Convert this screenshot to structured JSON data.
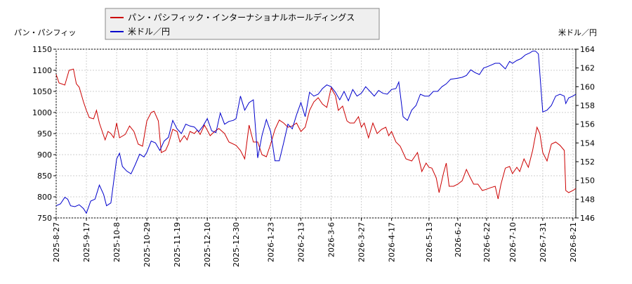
{
  "chart_data": {
    "type": "line",
    "legend_position": "top",
    "grid": true,
    "y_left_label": "パン・パシフィッ",
    "y_right_label": "米ドル／円",
    "y_left_range": [
      750,
      1150
    ],
    "y_right_range": [
      146,
      164
    ],
    "y_left_ticks": [
      "750",
      "800",
      "850",
      "900",
      "950",
      "1000",
      "1050",
      "1100",
      "1150"
    ],
    "y_right_ticks": [
      "146",
      "148",
      "150",
      "152",
      "154",
      "156",
      "158",
      "160",
      "162",
      "164"
    ],
    "x_range": [
      "2025-8-27",
      "2026-8-23"
    ],
    "x_ticks": [
      "2025-8-27",
      "2025-9-17",
      "2025-10-8",
      "2025-10-29",
      "2025-11-19",
      "2025-12-10",
      "2025-12-30",
      "2026-1-23",
      "2026-2-13",
      "2026-3-6",
      "2026-3-27",
      "2026-4-17",
      "2026-5-13",
      "2026-6-2",
      "2026-6-22",
      "2026-7-10",
      "2026-7-31",
      "2026-8-21"
    ],
    "series": [
      {
        "name": "パン・パシフィック・インターナショナルホールディングス",
        "color": "#cc0000",
        "axis": "left",
        "points": [
          [
            "2025-8-27",
            1090
          ],
          [
            "2025-8-29",
            1070
          ],
          [
            "2025-9-2",
            1065
          ],
          [
            "2025-9-5",
            1100
          ],
          [
            "2025-9-8",
            1103
          ],
          [
            "2025-9-10",
            1068
          ],
          [
            "2025-9-12",
            1060
          ],
          [
            "2025-9-15",
            1025
          ],
          [
            "2025-9-17",
            1005
          ],
          [
            "2025-9-19",
            988
          ],
          [
            "2025-9-22",
            985
          ],
          [
            "2025-9-24",
            1005
          ],
          [
            "2025-9-26",
            975
          ],
          [
            "2025-9-30",
            935
          ],
          [
            "2025-10-2",
            955
          ],
          [
            "2025-10-4",
            950
          ],
          [
            "2025-10-6",
            940
          ],
          [
            "2025-10-8",
            975
          ],
          [
            "2025-10-10",
            940
          ],
          [
            "2025-10-14",
            948
          ],
          [
            "2025-10-17",
            968
          ],
          [
            "2025-10-20",
            955
          ],
          [
            "2025-10-23",
            925
          ],
          [
            "2025-10-26",
            920
          ],
          [
            "2025-10-29",
            980
          ],
          [
            "2025-11-1",
            1000
          ],
          [
            "2025-11-3",
            1003
          ],
          [
            "2025-11-6",
            980
          ],
          [
            "2025-11-8",
            905
          ],
          [
            "2025-11-11",
            910
          ],
          [
            "2025-11-13",
            925
          ],
          [
            "2025-11-16",
            960
          ],
          [
            "2025-11-19",
            955
          ],
          [
            "2025-11-21",
            930
          ],
          [
            "2025-11-24",
            945
          ],
          [
            "2025-11-26",
            935
          ],
          [
            "2025-11-28",
            955
          ],
          [
            "2025-12-1",
            950
          ],
          [
            "2025-12-3",
            958
          ],
          [
            "2025-12-5",
            948
          ],
          [
            "2025-12-8",
            970
          ],
          [
            "2025-12-10",
            958
          ],
          [
            "2025-12-12",
            945
          ],
          [
            "2025-12-15",
            955
          ],
          [
            "2025-12-18",
            962
          ],
          [
            "2025-12-22",
            950
          ],
          [
            "2025-12-25",
            930
          ],
          [
            "2025-12-30",
            922
          ],
          [
            "2026-1-2",
            910
          ],
          [
            "2026-1-5",
            890
          ],
          [
            "2026-1-8",
            970
          ],
          [
            "2026-1-11",
            930
          ],
          [
            "2026-1-14",
            930
          ],
          [
            "2026-1-17",
            900
          ],
          [
            "2026-1-20",
            895
          ],
          [
            "2026-1-23",
            925
          ],
          [
            "2026-1-26",
            960
          ],
          [
            "2026-1-29",
            982
          ],
          [
            "2026-2-1",
            975
          ],
          [
            "2026-2-4",
            965
          ],
          [
            "2026-2-7",
            968
          ],
          [
            "2026-2-10",
            975
          ],
          [
            "2026-2-13",
            955
          ],
          [
            "2026-2-16",
            965
          ],
          [
            "2026-2-19",
            1005
          ],
          [
            "2026-2-22",
            1025
          ],
          [
            "2026-2-25",
            1035
          ],
          [
            "2026-2-28",
            1020
          ],
          [
            "2026-3-3",
            1012
          ],
          [
            "2026-3-6",
            1058
          ],
          [
            "2026-3-9",
            1040
          ],
          [
            "2026-3-11",
            1005
          ],
          [
            "2026-3-14",
            1015
          ],
          [
            "2026-3-17",
            980
          ],
          [
            "2026-3-19",
            975
          ],
          [
            "2026-3-22",
            975
          ],
          [
            "2026-3-25",
            990
          ],
          [
            "2026-3-27",
            965
          ],
          [
            "2026-3-29",
            975
          ],
          [
            "2026-4-1",
            940
          ],
          [
            "2026-4-4",
            975
          ],
          [
            "2026-4-7",
            950
          ],
          [
            "2026-4-10",
            960
          ],
          [
            "2026-4-13",
            965
          ],
          [
            "2026-4-15",
            945
          ],
          [
            "2026-4-17",
            955
          ],
          [
            "2026-4-20",
            930
          ],
          [
            "2026-4-23",
            920
          ],
          [
            "2026-4-27",
            890
          ],
          [
            "2026-5-1",
            885
          ],
          [
            "2026-5-5",
            905
          ],
          [
            "2026-5-8",
            860
          ],
          [
            "2026-5-11",
            880
          ],
          [
            "2026-5-13",
            870
          ],
          [
            "2026-5-15",
            868
          ],
          [
            "2026-5-18",
            845
          ],
          [
            "2026-5-20",
            810
          ],
          [
            "2026-5-23",
            855
          ],
          [
            "2026-5-25",
            880
          ],
          [
            "2026-5-27",
            825
          ],
          [
            "2026-5-30",
            825
          ],
          [
            "2026-6-2",
            830
          ],
          [
            "2026-6-5",
            838
          ],
          [
            "2026-6-8",
            865
          ],
          [
            "2026-6-10",
            850
          ],
          [
            "2026-6-13",
            830
          ],
          [
            "2026-6-16",
            830
          ],
          [
            "2026-6-19",
            815
          ],
          [
            "2026-6-22",
            818
          ],
          [
            "2026-6-25",
            822
          ],
          [
            "2026-6-28",
            825
          ],
          [
            "2026-6-30",
            795
          ],
          [
            "2026-7-2",
            830
          ],
          [
            "2026-7-5",
            868
          ],
          [
            "2026-7-8",
            872
          ],
          [
            "2026-7-10",
            855
          ],
          [
            "2026-7-13",
            870
          ],
          [
            "2026-7-15",
            860
          ],
          [
            "2026-7-18",
            890
          ],
          [
            "2026-7-21",
            870
          ],
          [
            "2026-7-24",
            910
          ],
          [
            "2026-7-27",
            965
          ],
          [
            "2026-7-29",
            950
          ],
          [
            "2026-7-31",
            905
          ],
          [
            "2026-8-3",
            885
          ],
          [
            "2026-8-6",
            925
          ],
          [
            "2026-8-9",
            930
          ],
          [
            "2026-8-12",
            922
          ],
          [
            "2026-8-15",
            910
          ],
          [
            "2026-8-16",
            815
          ],
          [
            "2026-8-18",
            810
          ],
          [
            "2026-8-21",
            815
          ],
          [
            "2026-8-23",
            820
          ]
        ]
      },
      {
        "name": "米ドル／円",
        "color": "#0000cc",
        "axis": "right",
        "points": [
          [
            "2025-8-27",
            147.3
          ],
          [
            "2025-8-30",
            147.5
          ],
          [
            "2025-9-2",
            148.2
          ],
          [
            "2025-9-4",
            148.0
          ],
          [
            "2025-9-6",
            147.3
          ],
          [
            "2025-9-9",
            147.2
          ],
          [
            "2025-9-12",
            147.4
          ],
          [
            "2025-9-15",
            147.0
          ],
          [
            "2025-9-17",
            146.5
          ],
          [
            "2025-9-20",
            147.8
          ],
          [
            "2025-9-23",
            148.0
          ],
          [
            "2025-9-26",
            149.5
          ],
          [
            "2025-9-29",
            148.5
          ],
          [
            "2025-10-1",
            147.3
          ],
          [
            "2025-10-4",
            147.6
          ],
          [
            "2025-10-8",
            152.3
          ],
          [
            "2025-10-10",
            152.9
          ],
          [
            "2025-10-12",
            151.5
          ],
          [
            "2025-10-15",
            151.0
          ],
          [
            "2025-10-18",
            150.7
          ],
          [
            "2025-10-21",
            151.7
          ],
          [
            "2025-10-24",
            152.8
          ],
          [
            "2025-10-27",
            152.5
          ],
          [
            "2025-10-29",
            153.0
          ],
          [
            "2025-11-1",
            154.2
          ],
          [
            "2025-11-4",
            154.0
          ],
          [
            "2025-11-7",
            153.2
          ],
          [
            "2025-11-10",
            154.2
          ],
          [
            "2025-11-13",
            154.6
          ],
          [
            "2025-11-16",
            156.4
          ],
          [
            "2025-11-19",
            155.5
          ],
          [
            "2025-11-22",
            155.0
          ],
          [
            "2025-11-25",
            156.0
          ],
          [
            "2025-11-28",
            155.8
          ],
          [
            "2025-12-1",
            155.7
          ],
          [
            "2025-12-4",
            155.2
          ],
          [
            "2025-12-7",
            155.8
          ],
          [
            "2025-12-10",
            156.6
          ],
          [
            "2025-12-13",
            155.3
          ],
          [
            "2025-12-16",
            155.1
          ],
          [
            "2025-12-19",
            157.2
          ],
          [
            "2025-12-22",
            156.0
          ],
          [
            "2025-12-25",
            156.3
          ],
          [
            "2025-12-28",
            156.4
          ],
          [
            "2025-12-30",
            156.6
          ],
          [
            "2026-1-2",
            159.0
          ],
          [
            "2026-1-5",
            157.5
          ],
          [
            "2026-1-8",
            158.3
          ],
          [
            "2026-1-11",
            158.6
          ],
          [
            "2026-1-14",
            152.4
          ],
          [
            "2026-1-17",
            154.8
          ],
          [
            "2026-1-20",
            156.5
          ],
          [
            "2026-1-23",
            155.2
          ],
          [
            "2026-1-26",
            152.1
          ],
          [
            "2026-1-29",
            152.1
          ],
          [
            "2026-2-1",
            154.0
          ],
          [
            "2026-2-4",
            156.0
          ],
          [
            "2026-2-7",
            155.5
          ],
          [
            "2026-2-10",
            157.0
          ],
          [
            "2026-2-13",
            158.3
          ],
          [
            "2026-2-16",
            156.8
          ],
          [
            "2026-2-19",
            159.4
          ],
          [
            "2026-2-22",
            159.0
          ],
          [
            "2026-2-25",
            159.2
          ],
          [
            "2026-2-28",
            159.8
          ],
          [
            "2026-3-3",
            160.2
          ],
          [
            "2026-3-6",
            160.0
          ],
          [
            "2026-3-9",
            159.4
          ],
          [
            "2026-3-12",
            158.6
          ],
          [
            "2026-3-15",
            159.5
          ],
          [
            "2026-3-18",
            158.5
          ],
          [
            "2026-3-21",
            159.7
          ],
          [
            "2026-3-24",
            159.0
          ],
          [
            "2026-3-27",
            159.3
          ],
          [
            "2026-3-30",
            160.0
          ],
          [
            "2026-4-2",
            159.5
          ],
          [
            "2026-4-5",
            159.0
          ],
          [
            "2026-4-8",
            159.6
          ],
          [
            "2026-4-11",
            159.3
          ],
          [
            "2026-4-14",
            159.2
          ],
          [
            "2026-4-17",
            159.7
          ],
          [
            "2026-4-20",
            159.8
          ],
          [
            "2026-4-22",
            160.5
          ],
          [
            "2026-4-25",
            156.8
          ],
          [
            "2026-4-28",
            156.4
          ],
          [
            "2026-5-1",
            157.5
          ],
          [
            "2026-5-4",
            158.0
          ],
          [
            "2026-5-7",
            159.2
          ],
          [
            "2026-5-10",
            159.0
          ],
          [
            "2026-5-13",
            159.0
          ],
          [
            "2026-5-16",
            159.5
          ],
          [
            "2026-5-19",
            159.5
          ],
          [
            "2026-5-22",
            160.0
          ],
          [
            "2026-5-25",
            160.3
          ],
          [
            "2026-5-28",
            160.8
          ],
          [
            "2026-6-2",
            160.9
          ],
          [
            "2026-6-5",
            161.0
          ],
          [
            "2026-6-8",
            161.2
          ],
          [
            "2026-6-11",
            161.8
          ],
          [
            "2026-6-14",
            161.5
          ],
          [
            "2026-6-17",
            161.3
          ],
          [
            "2026-6-20",
            162.0
          ],
          [
            "2026-6-22",
            162.1
          ],
          [
            "2026-6-25",
            162.3
          ],
          [
            "2026-6-28",
            162.5
          ],
          [
            "2026-7-1",
            162.5
          ],
          [
            "2026-7-3",
            162.2
          ],
          [
            "2026-7-5",
            161.9
          ],
          [
            "2026-7-8",
            162.7
          ],
          [
            "2026-7-10",
            162.5
          ],
          [
            "2026-7-13",
            162.8
          ],
          [
            "2026-7-16",
            163.0
          ],
          [
            "2026-7-19",
            163.4
          ],
          [
            "2026-7-22",
            163.6
          ],
          [
            "2026-7-24",
            163.8
          ],
          [
            "2026-7-26",
            163.8
          ],
          [
            "2026-7-28",
            163.5
          ],
          [
            "2026-7-31",
            157.3
          ],
          [
            "2026-8-3",
            157.5
          ],
          [
            "2026-8-6",
            158.0
          ],
          [
            "2026-8-9",
            159.0
          ],
          [
            "2026-8-12",
            159.2
          ],
          [
            "2026-8-15",
            159.0
          ],
          [
            "2026-8-16",
            158.2
          ],
          [
            "2026-8-18",
            158.8
          ],
          [
            "2026-8-21",
            159.0
          ],
          [
            "2026-8-23",
            159.2
          ]
        ]
      }
    ]
  }
}
